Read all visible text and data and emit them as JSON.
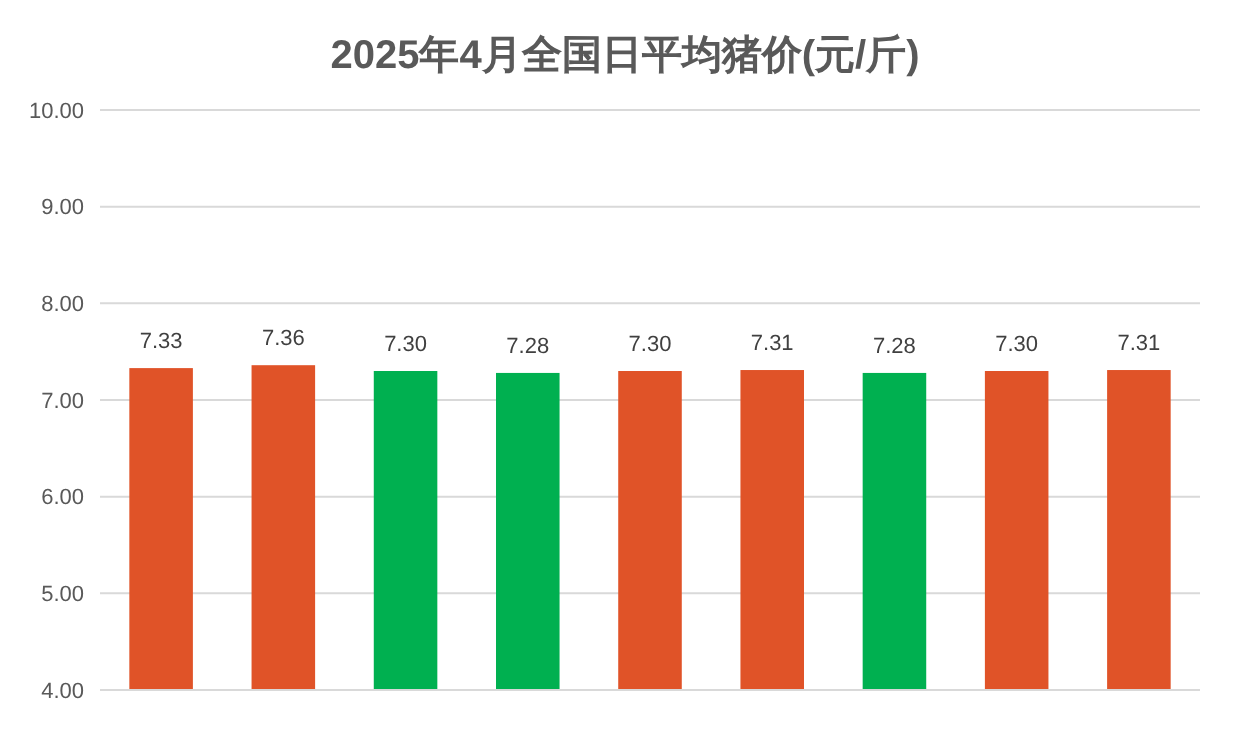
{
  "chart_data": {
    "type": "bar",
    "title": "2025年4月全国日平均猪价(元/斤)",
    "categories": [
      null,
      null,
      null,
      null,
      null,
      null,
      null,
      null,
      null
    ],
    "values": [
      7.33,
      7.36,
      7.3,
      7.28,
      7.3,
      7.31,
      7.28,
      7.3,
      7.31
    ],
    "value_labels": [
      "7.33",
      "7.36",
      "7.30",
      "7.28",
      "7.30",
      "7.31",
      "7.28",
      "7.30",
      "7.31"
    ],
    "colors": [
      "#e05328",
      "#e05328",
      "#00b050",
      "#00b050",
      "#e05328",
      "#e05328",
      "#00b050",
      "#e05328",
      "#e05328"
    ],
    "ylim": [
      4,
      10
    ],
    "yticks": [
      {
        "value": 4,
        "label": "4.00"
      },
      {
        "value": 5,
        "label": "5.00"
      },
      {
        "value": 6,
        "label": "6.00"
      },
      {
        "value": 7,
        "label": "7.00"
      },
      {
        "value": 8,
        "label": "8.00"
      },
      {
        "value": 9,
        "label": "9.00"
      },
      {
        "value": 10,
        "label": "10.00"
      }
    ],
    "grid": "y"
  }
}
